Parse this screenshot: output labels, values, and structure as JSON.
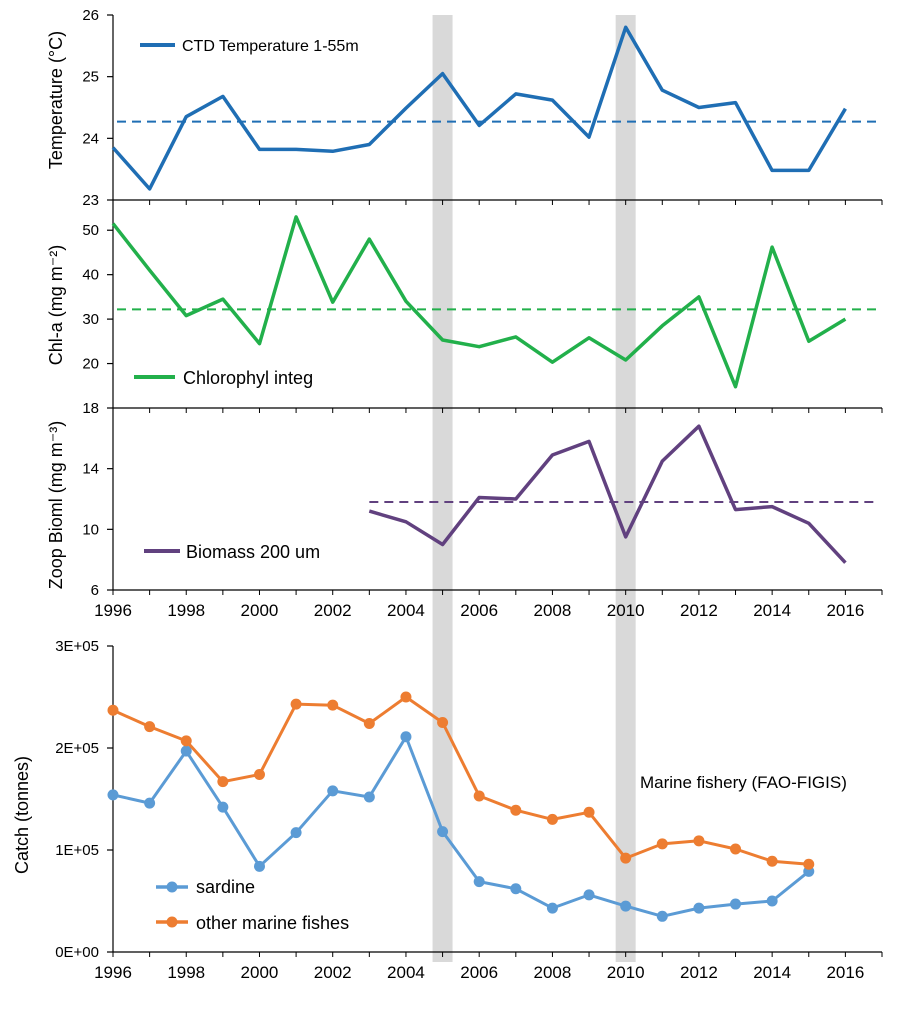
{
  "colors": {
    "temperature": "#1f6eb4",
    "chlorophyll": "#22b04b",
    "biomass": "#61417f",
    "sardine": "#5b9bd5",
    "other": "#ed7d31",
    "highlight": "#d9d9d9"
  },
  "chart_data": [
    {
      "type": "line",
      "ylabel": "Temperature (°C)",
      "ylim": [
        23,
        26
      ],
      "yticks": [
        "23",
        "24",
        "25",
        "26"
      ],
      "xlim": [
        1996,
        2017
      ],
      "series": [
        {
          "name": "CTD Temperature 1-55m",
          "x": [
            1996,
            1997,
            1998,
            1999,
            2000,
            2001,
            2002,
            2003,
            2004,
            2005,
            2006,
            2007,
            2008,
            2009,
            2010,
            2011,
            2012,
            2013,
            2014,
            2015,
            2016
          ],
          "values": [
            23.85,
            23.18,
            24.35,
            24.68,
            23.82,
            23.82,
            23.79,
            23.9,
            24.49,
            25.05,
            24.21,
            24.72,
            24.62,
            24.02,
            25.8,
            24.78,
            24.5,
            24.58,
            23.48,
            23.48,
            24.48
          ]
        }
      ],
      "reference_line": 24.27,
      "highlight_years": [
        2005,
        2010
      ]
    },
    {
      "type": "line",
      "ylabel": "Chl-a (mg m⁻²)",
      "ylim": [
        10,
        55
      ],
      "yticks": [
        "20",
        "30",
        "40",
        "50"
      ],
      "xlim": [
        1996,
        2017
      ],
      "series": [
        {
          "name": "Chlorophyl integ",
          "x": [
            1996,
            1997,
            1998,
            1999,
            2000,
            2001,
            2002,
            2003,
            2004,
            2005,
            2006,
            2007,
            2008,
            2009,
            2010,
            2011,
            2012,
            2013,
            2014,
            2015,
            2016
          ],
          "values": [
            51.5,
            41.0,
            30.8,
            34.5,
            24.5,
            53.0,
            33.8,
            48.0,
            34.0,
            25.3,
            23.8,
            26.0,
            20.3,
            25.8,
            20.8,
            28.5,
            35.0,
            14.8,
            46.2,
            25.0,
            30.0
          ]
        }
      ],
      "reference_line": 32.2,
      "highlight_years": [
        2005,
        2010
      ]
    },
    {
      "type": "line",
      "ylabel": "Zoop Bioml (mg m⁻³)",
      "ylim": [
        6,
        18
      ],
      "yticks": [
        "6",
        "10",
        "14",
        "18"
      ],
      "xlim": [
        1996,
        2017
      ],
      "xticks": [
        "1996",
        "1998",
        "2000",
        "2002",
        "2004",
        "2006",
        "2008",
        "2010",
        "2012",
        "2014",
        "2016"
      ],
      "series": [
        {
          "name": "Biomass 200 um",
          "x": [
            2003,
            2004,
            2005,
            2006,
            2007,
            2008,
            2009,
            2010,
            2011,
            2012,
            2013,
            2014,
            2015,
            2016
          ],
          "values": [
            11.2,
            10.5,
            9.0,
            12.1,
            12.0,
            14.9,
            15.8,
            9.5,
            14.5,
            16.8,
            11.3,
            11.5,
            10.4,
            7.8
          ]
        }
      ],
      "reference_line": 11.8,
      "highlight_years": [
        2005,
        2010
      ]
    },
    {
      "type": "line",
      "ylabel": "Catch (tonnes)",
      "ylim": [
        0,
        300000
      ],
      "yticks": [
        "0E+00",
        "1E+05",
        "2E+05",
        "3E+05"
      ],
      "xlim": [
        1996,
        2017
      ],
      "xticks": [
        "1996",
        "1998",
        "2000",
        "2002",
        "2004",
        "2006",
        "2008",
        "2010",
        "2012",
        "2014",
        "2016"
      ],
      "annotation": "Marine fishery (FAO-FIGIS)",
      "series": [
        {
          "name": "sardine",
          "x": [
            1996,
            1997,
            1998,
            1999,
            2000,
            2001,
            2002,
            2003,
            2004,
            2005,
            2006,
            2007,
            2008,
            2009,
            2010,
            2011,
            2012,
            2013,
            2014,
            2015
          ],
          "values": [
            154000,
            146000,
            197000,
            142000,
            84000,
            117000,
            158000,
            152000,
            211000,
            118000,
            69000,
            62000,
            43000,
            56000,
            45000,
            35000,
            43000,
            47000,
            50000,
            79000
          ]
        },
        {
          "name": "other marine fishes",
          "x": [
            1996,
            1997,
            1998,
            1999,
            2000,
            2001,
            2002,
            2003,
            2004,
            2005,
            2006,
            2007,
            2008,
            2009,
            2010,
            2011,
            2012,
            2013,
            2014,
            2015
          ],
          "values": [
            237000,
            221000,
            207000,
            167000,
            174000,
            243000,
            242000,
            224000,
            250000,
            225000,
            153000,
            139000,
            130000,
            137000,
            92000,
            106000,
            109000,
            101000,
            89000,
            86000
          ]
        }
      ],
      "highlight_years": [
        2005,
        2010
      ]
    }
  ]
}
